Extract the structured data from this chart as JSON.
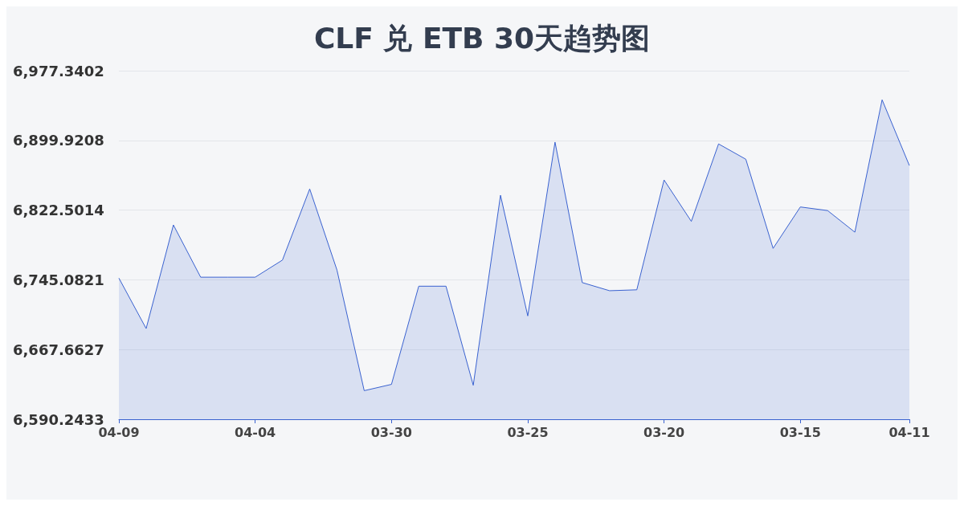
{
  "chart_data": {
    "type": "area",
    "title": "CLF 兑 ETB 30天趋势图",
    "categories": [
      "04-09",
      null,
      null,
      null,
      null,
      "04-04",
      null,
      null,
      null,
      null,
      "03-30",
      null,
      null,
      null,
      null,
      "03-25",
      null,
      null,
      null,
      null,
      "03-20",
      null,
      null,
      null,
      null,
      "03-15",
      null,
      null,
      null,
      "04-11"
    ],
    "series": [
      {
        "color": "#3a62d0",
        "values": [
          6747,
          6691,
          6806,
          6748,
          6748,
          6748,
          6767,
          6846,
          6756,
          6622,
          6629,
          6738,
          6738,
          6628,
          6839,
          6705,
          6898,
          6742,
          6733,
          6734,
          6856,
          6810,
          6896,
          6879,
          6780,
          6826,
          6822,
          6798,
          6945,
          6872
        ]
      }
    ],
    "ylim": [
      6590.2433,
      6977.3402
    ],
    "yticks": [
      {
        "value": 6590.2433,
        "label": "6,590.2433"
      },
      {
        "value": 6667.6627,
        "label": "6,667.6627"
      },
      {
        "value": 6745.0821,
        "label": "6,745.0821"
      },
      {
        "value": 6822.5014,
        "label": "6,822.5014"
      },
      {
        "value": 6899.9208,
        "label": "6,899.9208"
      },
      {
        "value": 6977.3402,
        "label": "6,977.3402"
      }
    ],
    "grid": "y",
    "marker": "none",
    "line_style": "solid"
  }
}
